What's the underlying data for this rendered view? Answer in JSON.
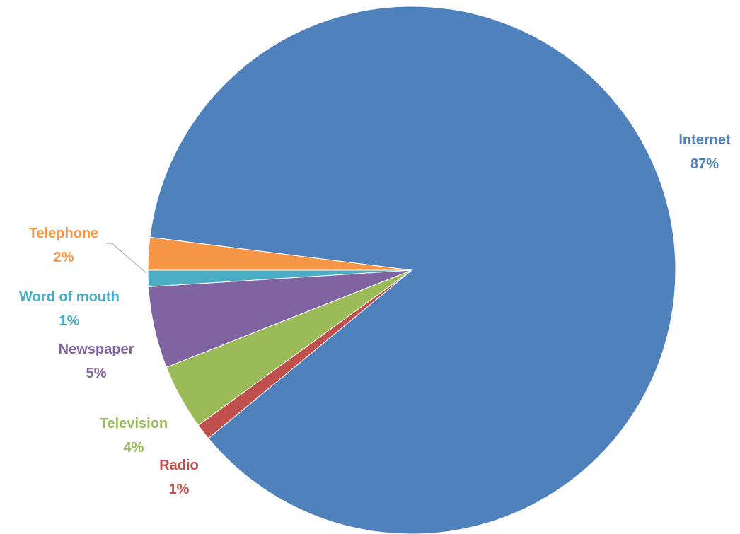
{
  "chart_data": {
    "type": "pie",
    "title": "",
    "start_angle_deg": 180,
    "direction": "clockwise",
    "legend": "none",
    "slices": [
      {
        "label": "Telephone",
        "value": 2,
        "value_label": "2%",
        "color": "#f79646"
      },
      {
        "label": "Internet",
        "value": 87,
        "value_label": "87%",
        "color": "#4f81bd"
      },
      {
        "label": "Radio",
        "value": 1,
        "value_label": "1%",
        "color": "#c0504d"
      },
      {
        "label": "Television",
        "value": 4,
        "value_label": "4%",
        "color": "#9bbb59"
      },
      {
        "label": "Newspaper",
        "value": 5,
        "value_label": "5%",
        "color": "#8064a2"
      },
      {
        "label": "Word of mouth",
        "value": 1,
        "value_label": "1%",
        "color": "#4bacc6"
      }
    ]
  }
}
